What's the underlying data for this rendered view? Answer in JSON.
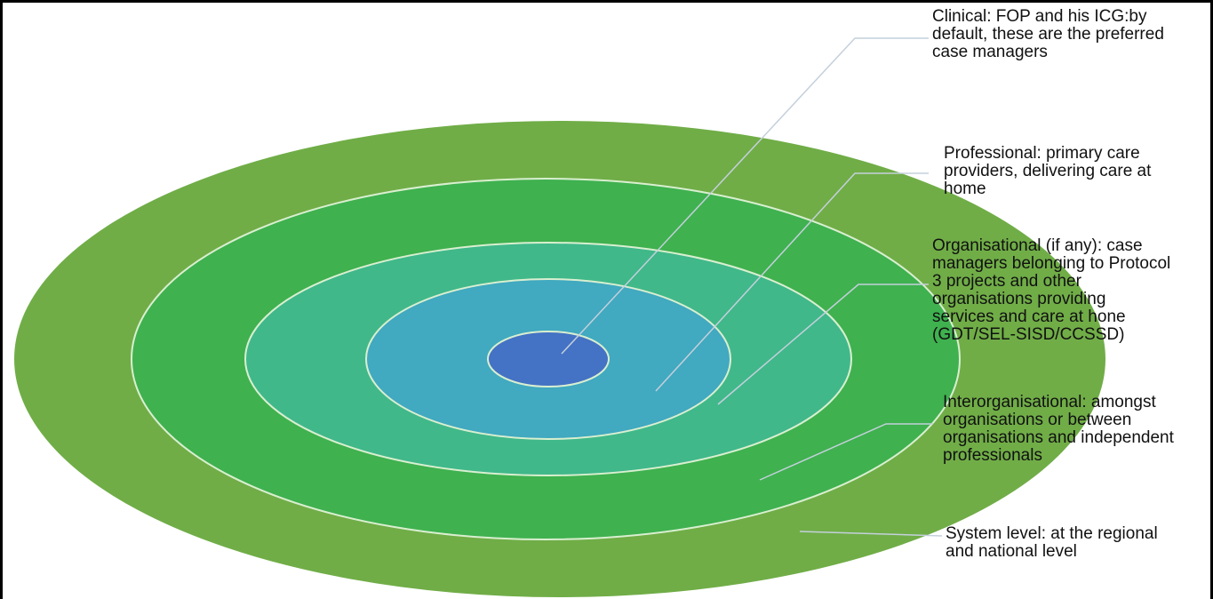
{
  "diagram": {
    "levels": [
      {
        "id": "system",
        "label": "System level: at the regional\nand national level",
        "color": "#70ad47"
      },
      {
        "id": "interorganisational",
        "label": "Interorganisational: amongst\norganisations or between\norganisations and independent\nprofessionals",
        "color": "#3fb14f"
      },
      {
        "id": "organisational",
        "label": "Organisational (if any): case\nmanagers belonging to Protocol\n3 projects and other\norganisations providing\nservices and care at hone\n(GDT/SEL-SISD/CCSSD)",
        "color": "#40b88a"
      },
      {
        "id": "professional",
        "label": "Professional: primary care\nproviders, delivering care at\nhome",
        "color": "#41a9c0"
      },
      {
        "id": "clinical",
        "label": "Clinical: FOP and his ICG:by\ndefault, these are the preferred\ncase managers",
        "color": "#4472c4"
      }
    ]
  }
}
